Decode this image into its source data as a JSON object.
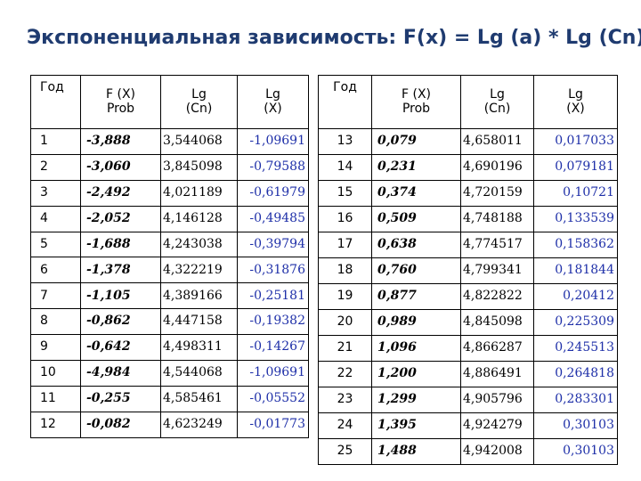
{
  "title": "Экспоненциальная зависимость: F(x) = Lg (a) * Lg (Cn)",
  "headers": {
    "year": "Год",
    "fx": "F (X)\nProb",
    "lgcn": "Lg\n(Cn)",
    "lgx": "Lg\n(X)"
  },
  "left_rows": [
    {
      "year": "1",
      "fx": "-3,888",
      "lgcn": "3,544068",
      "lgx": "-1,09691"
    },
    {
      "year": "2",
      "fx": "-3,060",
      "lgcn": "3,845098",
      "lgx": "-0,79588"
    },
    {
      "year": "3",
      "fx": "-2,492",
      "lgcn": "4,021189",
      "lgx": "-0,61979"
    },
    {
      "year": "4",
      "fx": "-2,052",
      "lgcn": "4,146128",
      "lgx": "-0,49485"
    },
    {
      "year": "5",
      "fx": "-1,688",
      "lgcn": "4,243038",
      "lgx": "-0,39794"
    },
    {
      "year": "6",
      "fx": "-1,378",
      "lgcn": "4,322219",
      "lgx": "-0,31876"
    },
    {
      "year": "7",
      "fx": "-1,105",
      "lgcn": "4,389166",
      "lgx": "-0,25181"
    },
    {
      "year": "8",
      "fx": "-0,862",
      "lgcn": "4,447158",
      "lgx": "-0,19382"
    },
    {
      "year": "9",
      "fx": "-0,642",
      "lgcn": "4,498311",
      "lgx": "-0,14267"
    },
    {
      "year": "10",
      "fx": "-4,984",
      "lgcn": "4,544068",
      "lgx": "-1,09691"
    },
    {
      "year": "11",
      "fx": "-0,255",
      "lgcn": "4,585461",
      "lgx": "-0,05552"
    },
    {
      "year": "12",
      "fx": "-0,082",
      "lgcn": "4,623249",
      "lgx": "-0,01773"
    }
  ],
  "right_rows": [
    {
      "year": "13",
      "fx": "0,079",
      "lgcn": "4,658011",
      "lgx": "0,017033"
    },
    {
      "year": "14",
      "fx": "0,231",
      "lgcn": "4,690196",
      "lgx": "0,079181"
    },
    {
      "year": "15",
      "fx": "0,374",
      "lgcn": "4,720159",
      "lgx": "0,10721"
    },
    {
      "year": "16",
      "fx": "0,509",
      "lgcn": "4,748188",
      "lgx": "0,133539"
    },
    {
      "year": "17",
      "fx": "0,638",
      "lgcn": "4,774517",
      "lgx": "0,158362"
    },
    {
      "year": "18",
      "fx": "0,760",
      "lgcn": "4,799341",
      "lgx": "0,181844"
    },
    {
      "year": "19",
      "fx": "0,877",
      "lgcn": "4,822822",
      "lgx": "0,20412"
    },
    {
      "year": "20",
      "fx": "0,989",
      "lgcn": "4,845098",
      "lgx": "0,225309"
    },
    {
      "year": "21",
      "fx": "1,096",
      "lgcn": "4,866287",
      "lgx": "0,245513"
    },
    {
      "year": "22",
      "fx": "1,200",
      "lgcn": "4,886491",
      "lgx": "0,264818"
    },
    {
      "year": "23",
      "fx": "1,299",
      "lgcn": "4,905796",
      "lgx": "0,283301"
    },
    {
      "year": "24",
      "fx": "1,395",
      "lgcn": "4,924279",
      "lgx": "0,30103"
    },
    {
      "year": "25",
      "fx": "1,488",
      "lgcn": "4,942008",
      "lgx": "0,30103"
    }
  ]
}
